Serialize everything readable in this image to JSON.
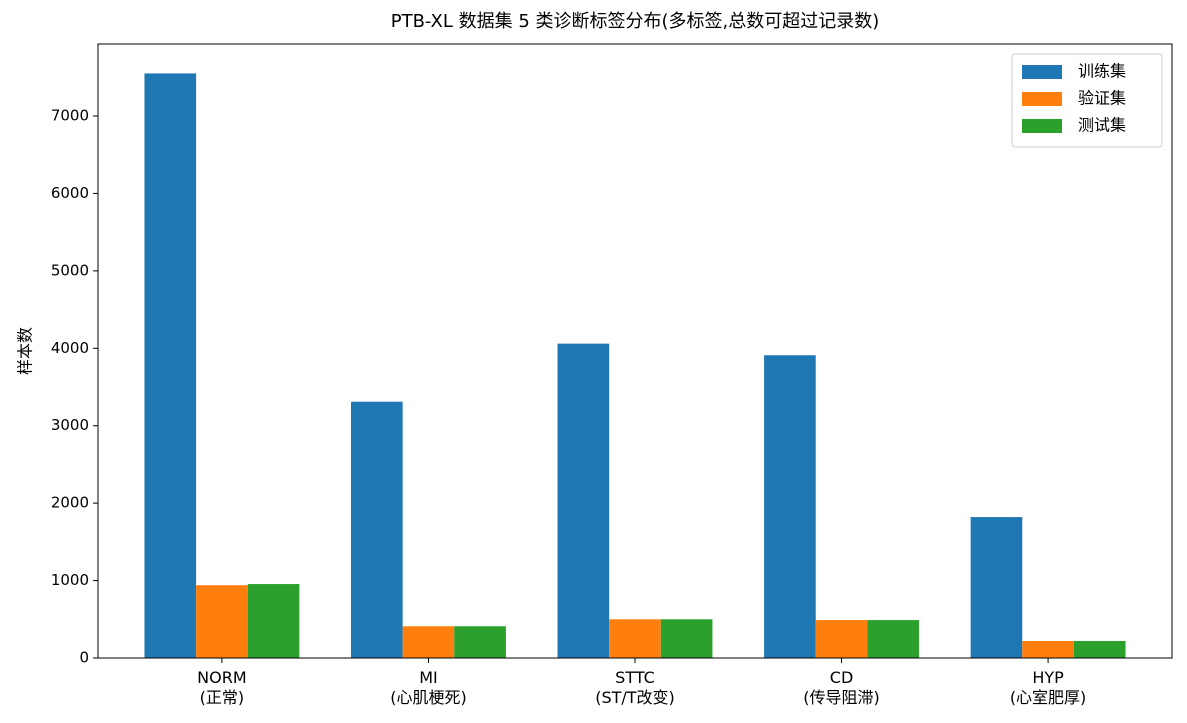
{
  "chart_data": {
    "type": "bar",
    "title": "PTB-XL 数据集 5 类诊断标签分布(多标签,总数可超过记录数)",
    "ylabel": "样本数",
    "categories": [
      "NORM\n(正常)",
      "MI\n(心肌梗死)",
      "STTC\n(ST/T改变)",
      "CD\n(传导阻滞)",
      "HYP\n(心室肥厚)"
    ],
    "series": [
      {
        "name": "训练集",
        "color": "#1f77b4",
        "values": [
          7550,
          3310,
          4060,
          3910,
          1820
        ]
      },
      {
        "name": "验证集",
        "color": "#ff7f0e",
        "values": [
          940,
          410,
          500,
          490,
          220
        ]
      },
      {
        "name": "测试集",
        "color": "#2ca02c",
        "values": [
          955,
          410,
          500,
          490,
          220
        ]
      }
    ],
    "ylim": [
      0,
      7930
    ],
    "yticks": [
      0,
      1000,
      2000,
      3000,
      4000,
      5000,
      6000,
      7000
    ],
    "legend": "upper right"
  }
}
